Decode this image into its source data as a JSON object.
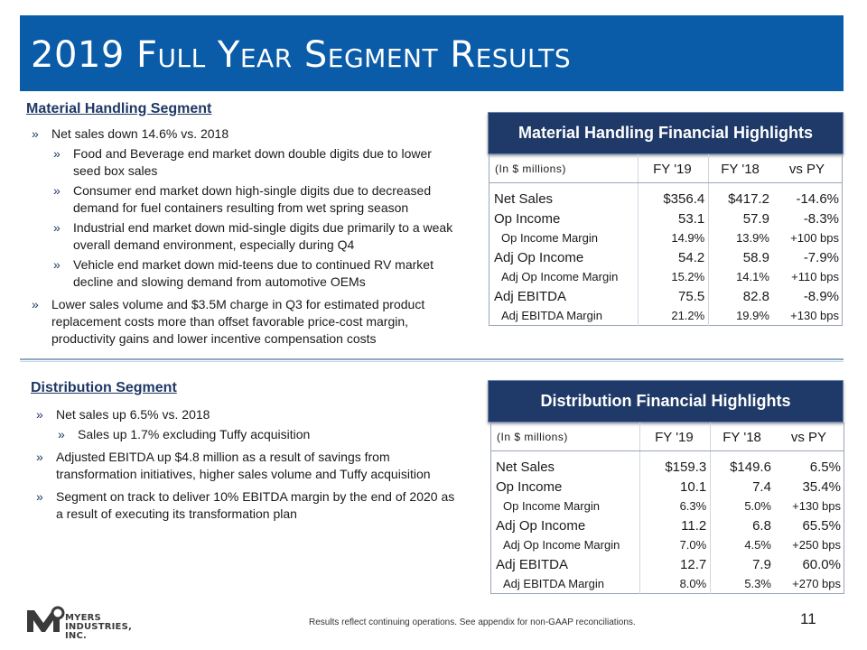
{
  "title": "2019 Full Year Segment Results",
  "material_handling": {
    "heading": "Material Handling Segment",
    "bullets": [
      "Net sales down 14.6% vs. 2018",
      "Food and Beverage end market down double digits due to lower seed box sales",
      "Consumer end market down high-single digits due to decreased demand for fuel containers resulting from wet spring season",
      "Industrial end market down mid-single digits due primarily to a weak overall demand environment, especially during Q4",
      "Vehicle end market down mid-teens due to continued RV market decline and slowing demand from automotive OEMs",
      "Lower sales volume and $3.5M charge in Q3 for estimated product replacement costs more than offset favorable price-cost margin, productivity gains and lower incentive compensation costs"
    ],
    "table": {
      "title": "Material Handling Financial Highlights",
      "unit_label": "(In $ millions)",
      "columns": [
        "FY '19",
        "FY '18",
        "vs PY"
      ],
      "rows": [
        {
          "label": "Net Sales",
          "fy19": "$356.4",
          "fy18": "$417.2",
          "vs_py": "-14.6%"
        },
        {
          "label": "Op Income",
          "fy19": "53.1",
          "fy18": "57.9",
          "vs_py": "-8.3%"
        },
        {
          "label": "Op Income Margin",
          "fy19": "14.9%",
          "fy18": "13.9%",
          "vs_py": "+100 bps"
        },
        {
          "label": "Adj Op Income",
          "fy19": "54.2",
          "fy18": "58.9",
          "vs_py": "-7.9%"
        },
        {
          "label": "Adj Op Income Margin",
          "fy19": "15.2%",
          "fy18": "14.1%",
          "vs_py": "+110 bps"
        },
        {
          "label": "Adj EBITDA",
          "fy19": "75.5",
          "fy18": "82.8",
          "vs_py": "-8.9%"
        },
        {
          "label": "Adj EBITDA Margin",
          "fy19": "21.2%",
          "fy18": "19.9%",
          "vs_py": "+130 bps"
        }
      ]
    }
  },
  "distribution": {
    "heading": "Distribution Segment",
    "bullets": [
      "Net sales up 6.5% vs. 2018",
      "Sales up 1.7% excluding Tuffy acquisition",
      "Adjusted EBITDA up $4.8 million as a result of savings from transformation initiatives, higher sales volume and Tuffy acquisition",
      "Segment on track to deliver 10% EBITDA margin by the end of 2020 as a result of executing its transformation plan"
    ],
    "table": {
      "title": "Distribution Financial Highlights",
      "unit_label": "(In $ millions)",
      "columns": [
        "FY '19",
        "FY '18",
        "vs PY"
      ],
      "rows": [
        {
          "label": "Net Sales",
          "fy19": "$159.3",
          "fy18": "$149.6",
          "vs_py": "6.5%"
        },
        {
          "label": "Op Income",
          "fy19": "10.1",
          "fy18": "7.4",
          "vs_py": "35.4%"
        },
        {
          "label": "Op Income Margin",
          "fy19": "6.3%",
          "fy18": "5.0%",
          "vs_py": "+130 bps"
        },
        {
          "label": "Adj Op Income",
          "fy19": "11.2",
          "fy18": "6.8",
          "vs_py": "65.5%"
        },
        {
          "label": "Adj Op Income Margin",
          "fy19": "7.0%",
          "fy18": "4.5%",
          "vs_py": "+250 bps"
        },
        {
          "label": "Adj EBITDA",
          "fy19": "12.7",
          "fy18": "7.9",
          "vs_py": "60.0%"
        },
        {
          "label": "Adj EBITDA Margin",
          "fy19": "8.0%",
          "fy18": "5.3%",
          "vs_py": "+270 bps"
        }
      ]
    }
  },
  "footer": {
    "note": "Results reflect continuing operations.  See appendix for non-GAAP reconciliations.",
    "page_number": "11",
    "logo_text": [
      "MYERS",
      "INDUSTRIES,",
      "INC."
    ]
  },
  "colors": {
    "title_bar": "#0a5ba8",
    "table_header": "#1f3a68",
    "heading_text": "#1f3864"
  }
}
